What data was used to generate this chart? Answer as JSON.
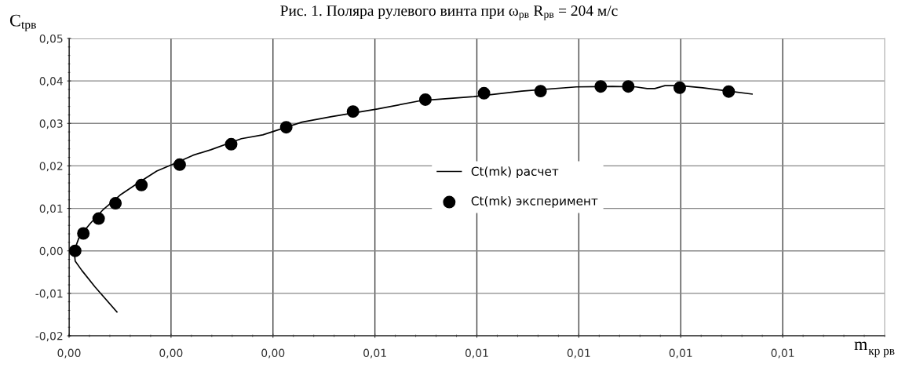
{
  "chart_data": {
    "type": "line",
    "title": "Рис. 1. Поляра рулевого винта при ω$_{рв}$ R$_{рв}$ = 204 м/с",
    "xlabel": "m$_{кр рв}$",
    "ylabel": "C$_{tрв}$",
    "xlim": [
      0,
      0.016
    ],
    "ylim": [
      -0.02,
      0.05
    ],
    "xticks": [
      {
        "value": 0,
        "label": "0,00"
      },
      {
        "value": 0.002,
        "label": "0,00"
      },
      {
        "value": 0.004,
        "label": "0,00"
      },
      {
        "value": 0.006,
        "label": "0,01"
      },
      {
        "value": 0.008,
        "label": "0,01"
      },
      {
        "value": 0.01,
        "label": "0,01"
      },
      {
        "value": 0.012,
        "label": "0,01"
      },
      {
        "value": 0.014,
        "label": "0,01"
      }
    ],
    "yticks": [
      {
        "value": -0.02,
        "label": "-0,02"
      },
      {
        "value": -0.01,
        "label": "-0,01"
      },
      {
        "value": 0,
        "label": "0,00"
      },
      {
        "value": 0.01,
        "label": "0,01"
      },
      {
        "value": 0.02,
        "label": "0,02"
      },
      {
        "value": 0.03,
        "label": "0,03"
      },
      {
        "value": 0.04,
        "label": "0,04"
      },
      {
        "value": 0.05,
        "label": "0,05"
      }
    ],
    "grid": true,
    "legend": "center",
    "series": [
      {
        "name": "Ct(mk) расчет",
        "color": "#000000",
        "marker": "none",
        "x": [
          0.00094,
          0.00051,
          0.00025,
          0.00012,
          0.0001,
          0.0002,
          0.00042,
          0.00066,
          0.00102,
          0.00137,
          0.00172,
          0.00202,
          0.00243,
          0.00278,
          0.00338,
          0.0038,
          0.00457,
          0.00515,
          0.00605,
          0.00692,
          0.00794,
          0.00888,
          0.00995,
          0.01066,
          0.01112,
          0.01134,
          0.01149,
          0.01169,
          0.01198,
          0.01243,
          0.01294,
          0.0134
        ],
        "values": [
          -0.0144,
          -0.0085,
          -0.0046,
          -0.0024,
          0,
          0.0033,
          0.0065,
          0.0096,
          0.0133,
          0.0161,
          0.0188,
          0.0203,
          0.0225,
          0.0238,
          0.0264,
          0.0273,
          0.0303,
          0.0316,
          0.0334,
          0.0354,
          0.0363,
          0.0376,
          0.0386,
          0.0387,
          0.0386,
          0.0382,
          0.0382,
          0.0389,
          0.0389,
          0.0384,
          0.0376,
          0.0369
        ]
      },
      {
        "name": "Ct(mk) эксперимент",
        "type": "scatter",
        "color": "#000000",
        "marker": "circle",
        "x": [
          0.00012,
          0.00028,
          0.00058,
          0.00091,
          0.00142,
          0.00217,
          0.00318,
          0.00426,
          0.00557,
          0.00699,
          0.00814,
          0.00925,
          0.01043,
          0.01097,
          0.01198,
          0.01294
        ],
        "values": [
          0,
          0.0041,
          0.0076,
          0.0112,
          0.0155,
          0.0203,
          0.0251,
          0.0291,
          0.0328,
          0.0356,
          0.0371,
          0.0376,
          0.0387,
          0.0387,
          0.0384,
          0.0375
        ]
      }
    ]
  }
}
